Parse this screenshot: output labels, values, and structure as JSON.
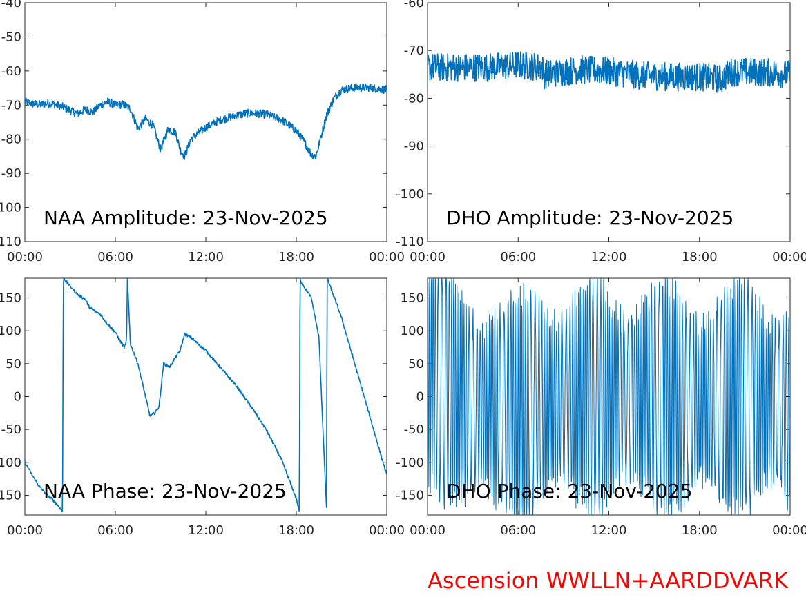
{
  "footer": {
    "text": "Ascension WWLLN+AARDDVARK",
    "color": "#ff0000"
  },
  "series_color": "#0072bd",
  "chart_data": [
    {
      "type": "line",
      "title": "NAA Amplitude: 23-Nov-2025",
      "ylim": [
        -110,
        -40
      ],
      "xlim": [
        0,
        24
      ],
      "xticks": [
        0,
        6,
        12,
        18,
        24
      ],
      "xtick_labels": [
        "00:00",
        "06:00",
        "12:00",
        "18:00",
        "00:00"
      ],
      "yticks": [
        -40,
        -50,
        -60,
        -70,
        -80,
        -90,
        -100,
        -110
      ],
      "ytick_labels": [
        "-40",
        "-50",
        "-60",
        "-70",
        "-80",
        "-90",
        "-100",
        "-110"
      ],
      "noise": 1.2,
      "x": [
        0,
        0.5,
        1,
        1.5,
        2,
        2.5,
        3,
        3.5,
        4,
        4.5,
        5,
        5.5,
        6,
        6.5,
        7,
        7.5,
        8,
        8.5,
        9,
        9.5,
        10,
        10.3,
        10.6,
        11,
        12,
        13,
        14,
        15,
        16,
        17,
        18,
        18.5,
        19,
        19.3,
        19.6,
        20,
        20.5,
        21,
        22,
        23,
        24
      ],
      "values": [
        -69,
        -69.6,
        -69.8,
        -69.5,
        -69.8,
        -70.5,
        -71.5,
        -72.5,
        -71.3,
        -72,
        -70,
        -69,
        -70,
        -69.8,
        -71,
        -77,
        -74,
        -76,
        -83,
        -77,
        -78,
        -83,
        -85,
        -80,
        -76.5,
        -74.3,
        -73,
        -72.3,
        -72.7,
        -74.2,
        -77.5,
        -80.5,
        -84.5,
        -85,
        -80,
        -73,
        -68,
        -65.5,
        -64.8,
        -65,
        -65.5
      ]
    },
    {
      "type": "line",
      "title": "DHO Amplitude: 23-Nov-2025",
      "ylim": [
        -110,
        -60
      ],
      "xlim": [
        0,
        24
      ],
      "xticks": [
        0,
        6,
        12,
        18,
        24
      ],
      "xtick_labels": [
        "00:00",
        "06:00",
        "12:00",
        "18:00",
        "00:00"
      ],
      "yticks": [
        -60,
        -70,
        -80,
        -90,
        -100,
        -110
      ],
      "ytick_labels": [
        "-60",
        "-70",
        "-80",
        "-90",
        "-100",
        "-110"
      ],
      "noise": 3.0,
      "x": [
        0,
        2,
        4,
        6,
        7.6,
        7.7,
        10,
        12,
        14,
        16,
        18,
        19.5,
        20,
        22,
        24
      ],
      "values": [
        -73.5,
        -73.5,
        -73.5,
        -73,
        -73.5,
        -75,
        -74,
        -74.3,
        -75.2,
        -75.5,
        -75.5,
        -76,
        -74.5,
        -74.5,
        -75
      ]
    },
    {
      "type": "line",
      "title": "NAA Phase: 23-Nov-2025",
      "ylim": [
        -180,
        180
      ],
      "xlim": [
        0,
        24
      ],
      "xticks": [
        0,
        6,
        12,
        18,
        24
      ],
      "xtick_labels": [
        "00:00",
        "06:00",
        "12:00",
        "18:00",
        "00:00"
      ],
      "yticks": [
        150,
        100,
        50,
        0,
        -50,
        -100,
        -150
      ],
      "ytick_labels": [
        "150",
        "100",
        "50",
        "0",
        "-50",
        "-100",
        "-150"
      ],
      "noise": 2.0,
      "wrap": true,
      "x": [
        0,
        0.5,
        1,
        1.5,
        2,
        2.5,
        2.55,
        2.6,
        2.7,
        3,
        3.5,
        4,
        4.3,
        5,
        5.5,
        6,
        6.3,
        6.6,
        6.7,
        6.75,
        6.8,
        7,
        7.5,
        8,
        8.3,
        8.6,
        8.9,
        9.2,
        9.6,
        10,
        10.3,
        10.6,
        11,
        12,
        13,
        14,
        15,
        16,
        17,
        18,
        18.2,
        18.25,
        18.3,
        19,
        19.5,
        20,
        20.05,
        21,
        22,
        23,
        24
      ],
      "values": [
        -100,
        -120,
        -138,
        -150,
        -160,
        -175,
        175,
        180,
        176,
        168,
        155,
        148,
        135,
        125,
        110,
        98,
        85,
        75,
        80,
        95,
        180,
        80,
        50,
        0,
        -30,
        -25,
        -15,
        50,
        45,
        60,
        70,
        95,
        90,
        70,
        43,
        17,
        -15,
        -50,
        -95,
        -155,
        -175,
        180,
        175,
        150,
        90,
        -170,
        180,
        120,
        40,
        -40,
        -120
      ]
    },
    {
      "type": "line",
      "title": "DHO Phase: 23-Nov-2025",
      "ylim": [
        -180,
        180
      ],
      "xlim": [
        0,
        24
      ],
      "xticks": [
        0,
        6,
        12,
        18,
        24
      ],
      "xtick_labels": [
        "00:00",
        "06:00",
        "12:00",
        "18:00",
        "00:00"
      ],
      "yticks": [
        150,
        100,
        50,
        0,
        -50,
        -100,
        -150
      ],
      "ytick_labels": [
        "150",
        "100",
        "50",
        "0",
        "-50",
        "-100",
        "-150"
      ],
      "noise": 0,
      "oscillating": true,
      "x": [
        0,
        1,
        3,
        6,
        9,
        12,
        15,
        18,
        20,
        22,
        24
      ],
      "values": [
        100,
        60,
        -40,
        -60,
        10,
        -10,
        0,
        -40,
        10,
        -20,
        -60
      ]
    }
  ]
}
